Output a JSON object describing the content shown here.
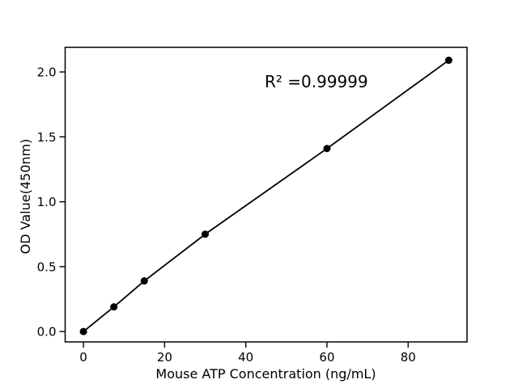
{
  "chart_data": {
    "type": "line",
    "title": "",
    "xlabel": "Mouse ATP Concentration (ng/mL)",
    "ylabel": "OD Value(450nm)",
    "annotation": "R² =0.99999",
    "x": [
      0,
      7.5,
      15,
      30,
      60,
      90
    ],
    "y": [
      0.0,
      0.19,
      0.39,
      0.75,
      1.41,
      2.09
    ],
    "xticks": [
      0,
      20,
      40,
      60,
      80
    ],
    "xtick_labels": [
      "0",
      "20",
      "40",
      "60",
      "80"
    ],
    "yticks": [
      0.0,
      0.5,
      1.0,
      1.5,
      2.0
    ],
    "ytick_labels": [
      "0.0",
      "0.5",
      "1.0",
      "1.5",
      "2.0"
    ],
    "xlim": [
      -4.5,
      94.5
    ],
    "ylim": [
      -0.08,
      2.19
    ],
    "grid": false,
    "legend": "none",
    "marker": "circle",
    "marker_size_px": 4.5,
    "colors": {
      "line": "#000000",
      "marker": "#000000",
      "text": "#000000",
      "background": "#ffffff"
    }
  }
}
